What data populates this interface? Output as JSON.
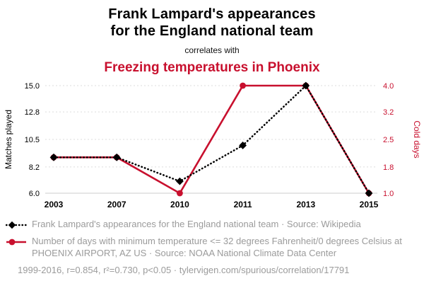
{
  "header": {
    "title_line1": "Frank Lampard's appearances",
    "title_line2": "for the England national team",
    "connector": "correlates with",
    "red_title": "Freezing temperatures in Phoenix"
  },
  "colors": {
    "red": "#c8102e",
    "black": "#000000",
    "legend_gray": "#9b9b9b",
    "gridline": "#dddddd"
  },
  "chart_data": {
    "type": "line",
    "categories": [
      "2003",
      "2007",
      "2010",
      "2011",
      "2013",
      "2015"
    ],
    "series": [
      {
        "name": "Frank Lampard's appearances for the England national team",
        "axis": "left",
        "color": "#000000",
        "line_style": "dotted",
        "marker": "diamond",
        "values": [
          9,
          9,
          7,
          10,
          15,
          6
        ]
      },
      {
        "name": "Freezing temperatures in Phoenix (cold days)",
        "axis": "right",
        "color": "#c8102e",
        "line_style": "solid",
        "marker": "circle",
        "values": [
          2,
          2,
          1,
          4,
          4,
          1
        ]
      }
    ],
    "left_axis": {
      "label": "Matches played",
      "min": 6.0,
      "max": 15.0,
      "ticks": [
        15.0,
        12.8,
        10.5,
        8.2,
        6.0
      ]
    },
    "right_axis": {
      "label": "Cold days",
      "min": 1.0,
      "max": 4.0,
      "ticks": [
        4.0,
        3.2,
        2.5,
        1.8,
        1.0
      ]
    },
    "grid": true,
    "legend_position": "below"
  },
  "legend": [
    {
      "marker": "diamond-dotted-line",
      "color": "#000000",
      "text": "Frank Lampard's appearances for the England national team · Source: Wikipedia"
    },
    {
      "marker": "circle-solid-line",
      "color": "#c8102e",
      "text": "Number of days with minimum temperature <= 32 degrees Fahrenheit/0 degrees Celsius at PHOENIX AIRPORT, AZ US · Source: NOAA National Climate Data Center"
    }
  ],
  "footer": "1999-2016, r=0.854, r²=0.730, p<0.05 · tylervigen.com/spurious/correlation/17791"
}
